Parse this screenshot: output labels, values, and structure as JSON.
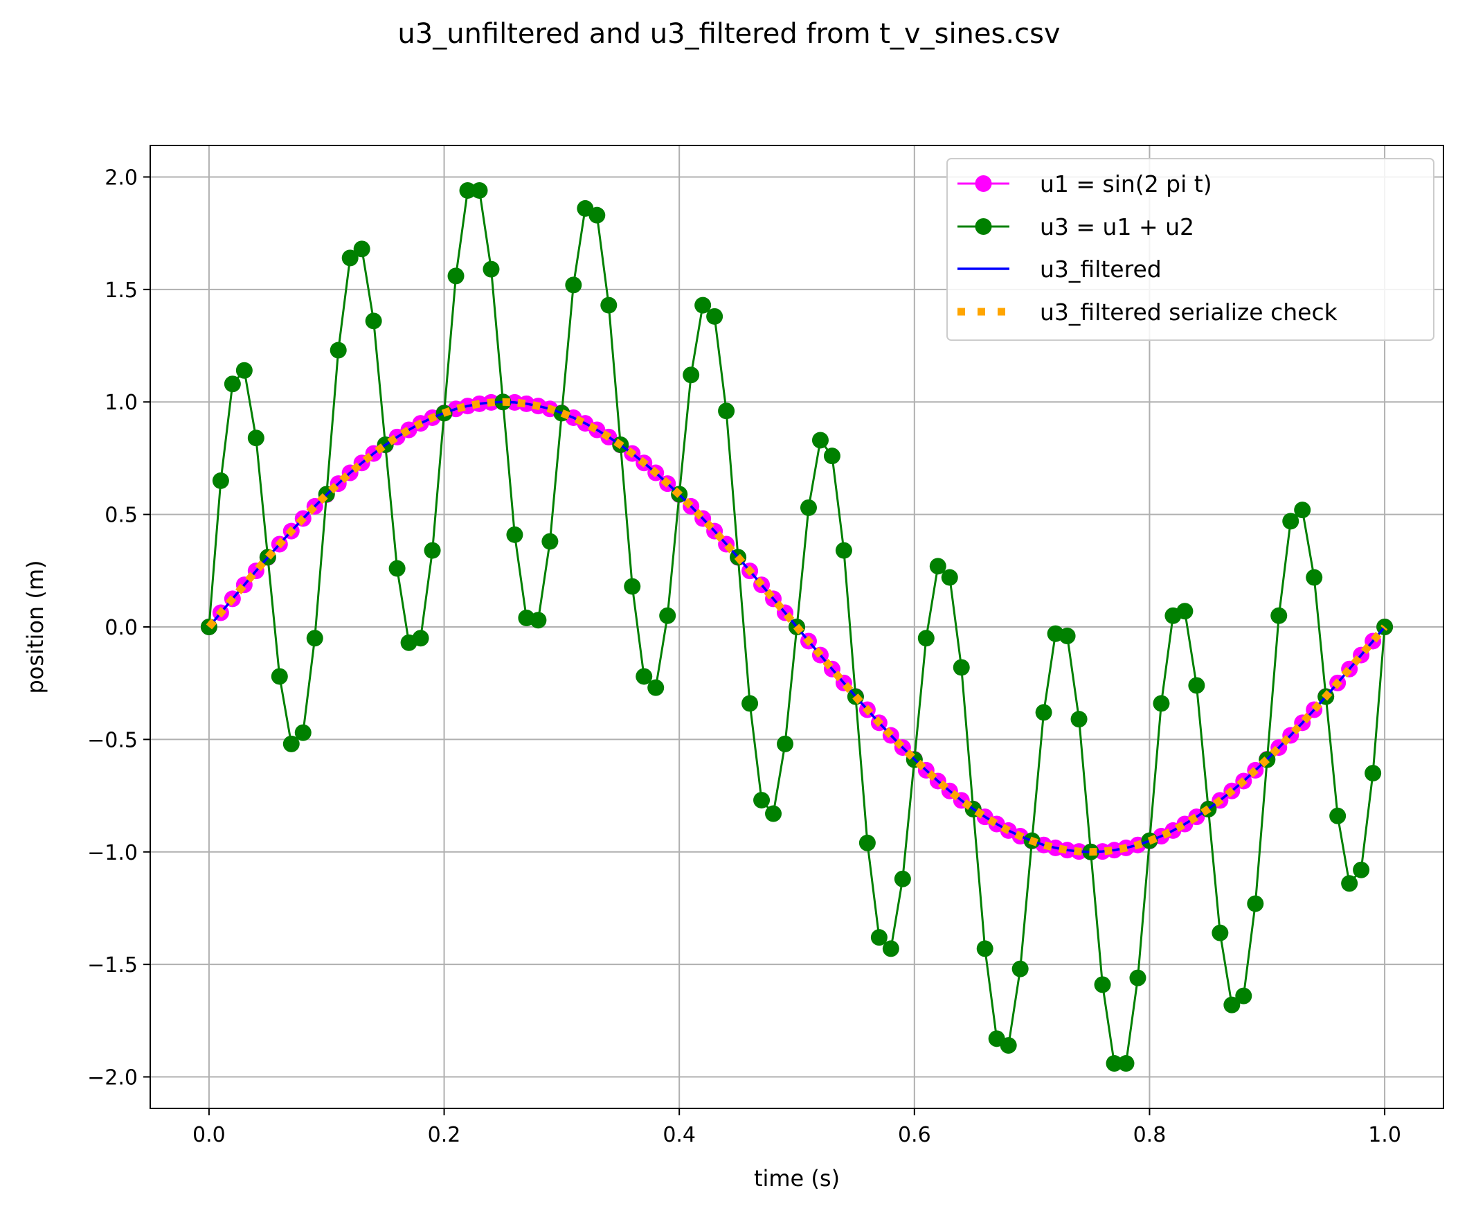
{
  "chart_data": {
    "type": "line",
    "title": "u3_unfiltered and u3_filtered from t_v_sines.csv",
    "xlabel": "time (s)",
    "ylabel": "position (m)",
    "xlim": [
      -0.05,
      1.05
    ],
    "ylim": [
      -2.14,
      2.14
    ],
    "xticks": [
      0.0,
      0.2,
      0.4,
      0.6,
      0.8,
      1.0
    ],
    "xtick_labels": [
      "0.0",
      "0.2",
      "0.4",
      "0.6",
      "0.8",
      "1.0"
    ],
    "yticks": [
      2.0,
      1.5,
      1.0,
      0.5,
      0.0,
      -0.5,
      -1.0,
      -1.5,
      -2.0
    ],
    "ytick_labels": [
      "2.0",
      "1.5",
      "1.0",
      "0.5",
      "0.0",
      "−0.5",
      "−1.0",
      "−1.5",
      "−2.0"
    ],
    "grid": true,
    "legend_position": "top-right",
    "x": [
      0.0,
      0.01,
      0.02,
      0.03,
      0.04,
      0.05,
      0.06,
      0.07,
      0.08,
      0.09,
      0.1,
      0.11,
      0.12,
      0.13,
      0.14,
      0.15,
      0.16,
      0.17,
      0.18,
      0.19,
      0.2,
      0.21,
      0.22,
      0.23,
      0.24,
      0.25,
      0.26,
      0.27,
      0.28,
      0.29,
      0.3,
      0.31,
      0.32,
      0.33,
      0.34,
      0.35,
      0.36,
      0.37,
      0.38,
      0.39,
      0.4,
      0.41,
      0.42,
      0.43,
      0.44,
      0.45,
      0.46,
      0.47,
      0.48,
      0.49,
      0.5,
      0.51,
      0.52,
      0.53,
      0.54,
      0.55,
      0.56,
      0.57,
      0.58,
      0.59,
      0.6,
      0.61,
      0.62,
      0.63,
      0.64,
      0.65,
      0.66,
      0.67,
      0.68,
      0.69,
      0.7,
      0.71,
      0.72,
      0.73,
      0.74,
      0.75,
      0.76,
      0.77,
      0.78,
      0.79,
      0.8,
      0.81,
      0.82,
      0.83,
      0.84,
      0.85,
      0.86,
      0.87,
      0.88,
      0.89,
      0.9,
      0.91,
      0.92,
      0.93,
      0.94,
      0.95,
      0.96,
      0.97,
      0.98,
      0.99,
      1.0
    ],
    "series": [
      {
        "name": "u1 = sin(2 pi t)",
        "color": "#ff00ff",
        "style": "line-with-circle-markers",
        "values": [
          0.0,
          0.063,
          0.125,
          0.187,
          0.249,
          0.309,
          0.368,
          0.426,
          0.482,
          0.536,
          0.588,
          0.637,
          0.685,
          0.729,
          0.771,
          0.809,
          0.844,
          0.876,
          0.905,
          0.93,
          0.951,
          0.969,
          0.982,
          0.992,
          0.998,
          1.0,
          0.998,
          0.992,
          0.982,
          0.969,
          0.951,
          0.93,
          0.905,
          0.876,
          0.844,
          0.809,
          0.771,
          0.729,
          0.685,
          0.637,
          0.588,
          0.536,
          0.482,
          0.426,
          0.368,
          0.309,
          0.249,
          0.187,
          0.125,
          0.063,
          0.0,
          -0.063,
          -0.125,
          -0.187,
          -0.249,
          -0.309,
          -0.368,
          -0.426,
          -0.482,
          -0.536,
          -0.588,
          -0.637,
          -0.685,
          -0.729,
          -0.771,
          -0.809,
          -0.844,
          -0.876,
          -0.905,
          -0.93,
          -0.951,
          -0.969,
          -0.982,
          -0.992,
          -0.998,
          -1.0,
          -0.998,
          -0.992,
          -0.982,
          -0.969,
          -0.951,
          -0.93,
          -0.905,
          -0.876,
          -0.844,
          -0.809,
          -0.771,
          -0.729,
          -0.685,
          -0.637,
          -0.588,
          -0.536,
          -0.482,
          -0.426,
          -0.368,
          -0.309,
          -0.249,
          -0.187,
          -0.125,
          -0.063,
          0.0
        ]
      },
      {
        "name": "u3 = u1 + u2",
        "color": "#008000",
        "style": "line-with-circle-markers",
        "values": [
          0.0,
          0.65,
          1.08,
          1.14,
          0.84,
          0.31,
          -0.22,
          -0.52,
          -0.47,
          -0.05,
          0.59,
          1.23,
          1.64,
          1.68,
          1.36,
          0.81,
          0.26,
          -0.07,
          -0.05,
          0.34,
          0.95,
          1.56,
          1.94,
          1.94,
          1.59,
          1.0,
          0.41,
          0.04,
          0.03,
          0.38,
          0.95,
          1.52,
          1.86,
          1.83,
          1.43,
          0.81,
          0.18,
          -0.22,
          -0.27,
          0.05,
          0.59,
          1.12,
          1.43,
          1.38,
          0.96,
          0.31,
          -0.34,
          -0.77,
          -0.83,
          -0.52,
          0.0,
          0.53,
          0.83,
          0.76,
          0.34,
          -0.31,
          -0.96,
          -1.38,
          -1.43,
          -1.12,
          -0.59,
          -0.05,
          0.27,
          0.22,
          -0.18,
          -0.81,
          -1.43,
          -1.83,
          -1.86,
          -1.52,
          -0.95,
          -0.38,
          -0.03,
          -0.04,
          -0.41,
          -1.0,
          -1.59,
          -1.94,
          -1.94,
          -1.56,
          -0.95,
          -0.34,
          0.05,
          0.07,
          -0.26,
          -0.81,
          -1.36,
          -1.68,
          -1.64,
          -1.23,
          -0.59,
          0.05,
          0.47,
          0.52,
          0.22,
          -0.31,
          -0.84,
          -1.14,
          -1.08,
          -0.65,
          0.0
        ]
      },
      {
        "name": "u3_filtered",
        "color": "#0000ff",
        "style": "solid-line",
        "values_ref": "same as u1 = sin(2 pi t)"
      },
      {
        "name": "u3_filtered serialize check",
        "color": "#ffa500",
        "style": "dotted-line",
        "values_ref": "same as u1 = sin(2 pi t)"
      }
    ]
  }
}
